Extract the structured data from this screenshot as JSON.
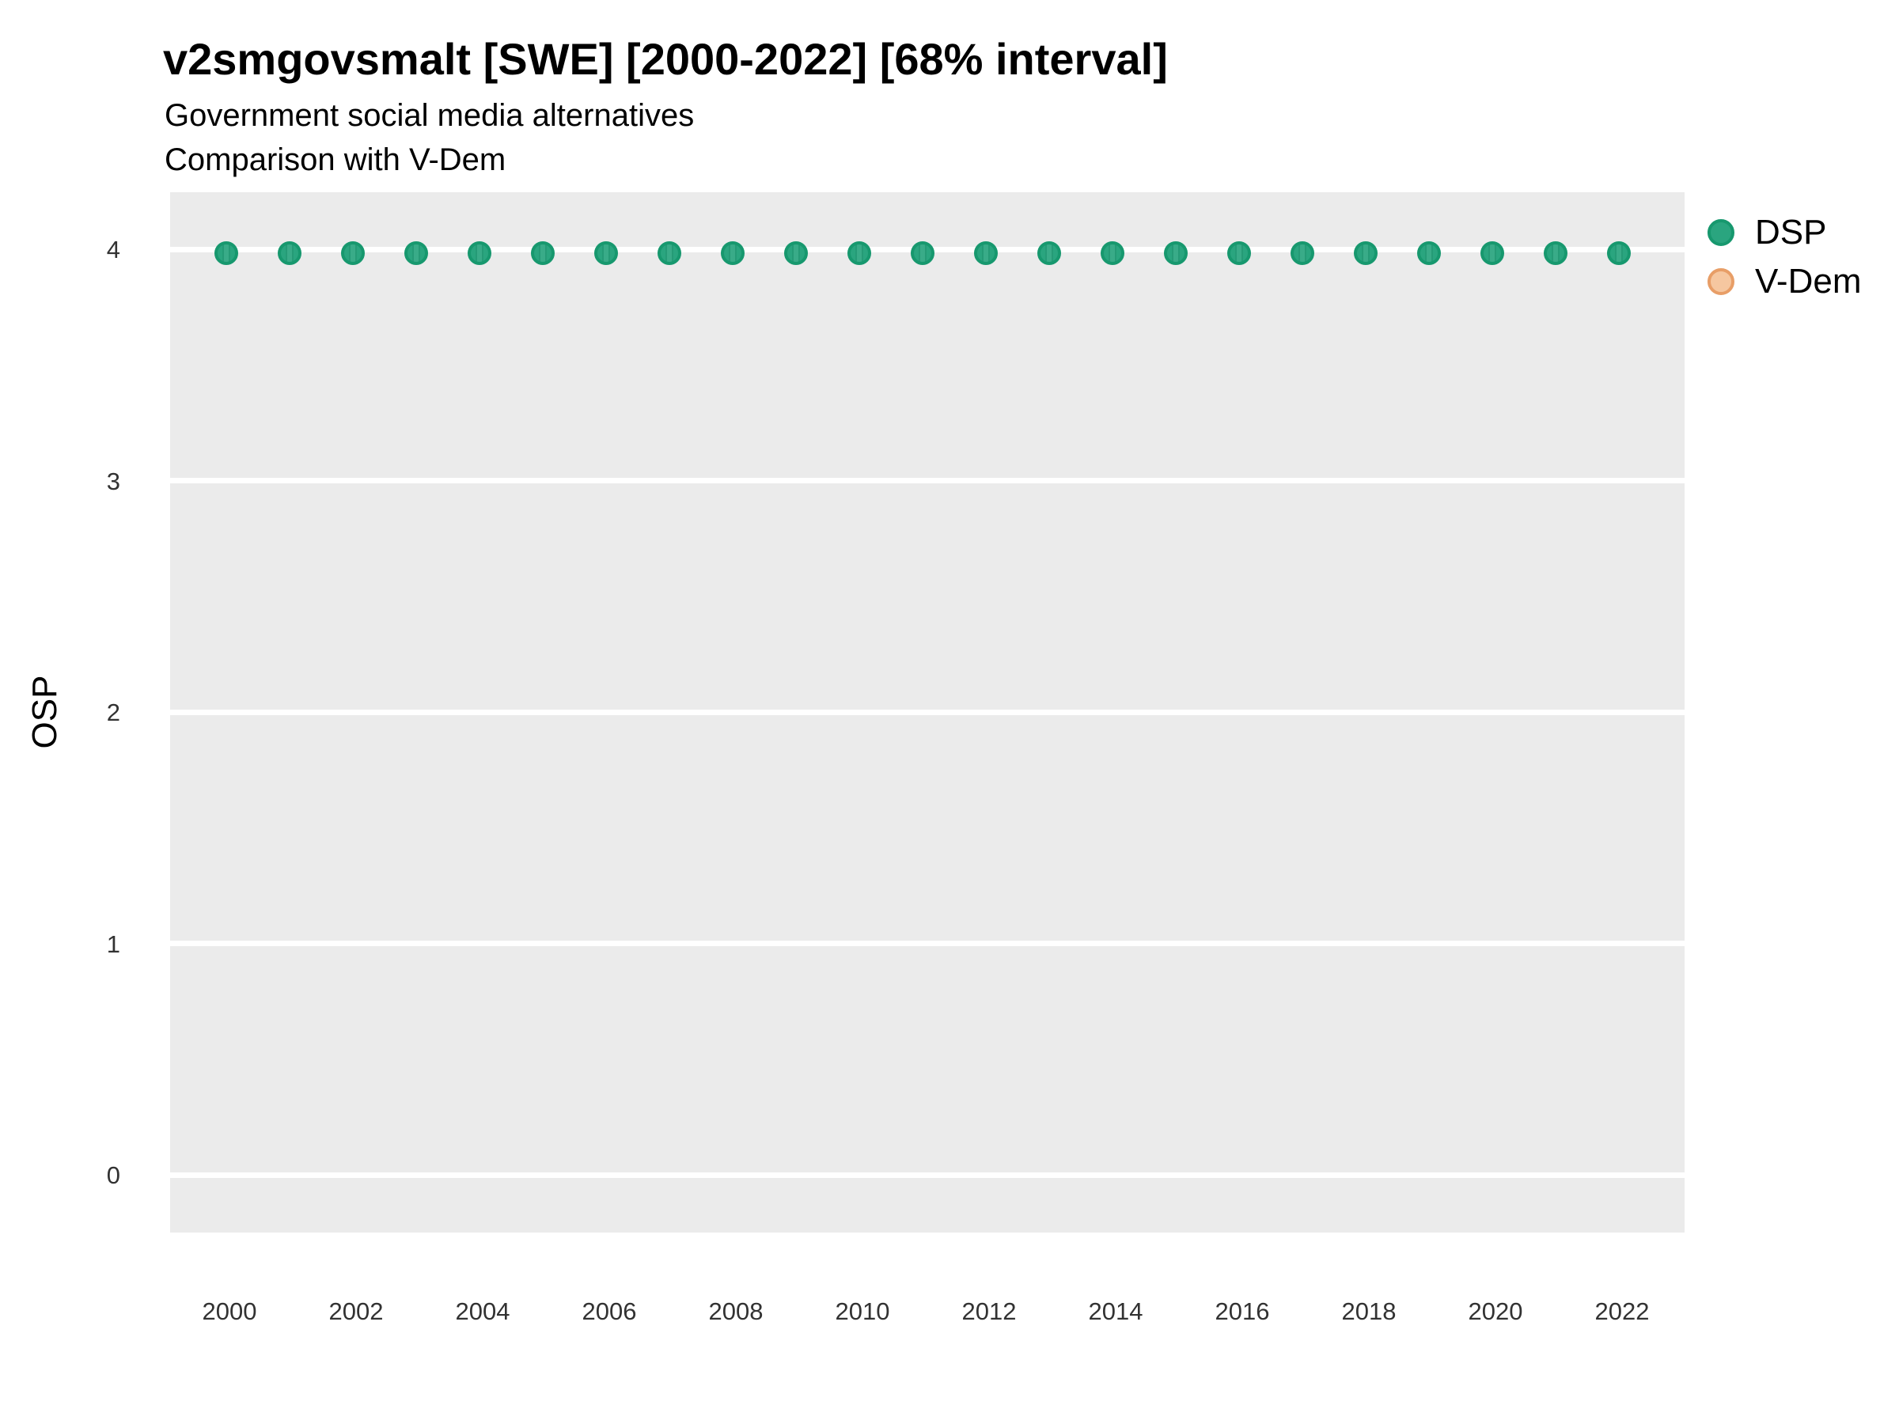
{
  "page": {
    "background": "#ffffff"
  },
  "chart_data": {
    "type": "scatter",
    "title": "v2smgovsmalt [SWE] [2000-2022] [68% interval]",
    "subtitle_line1": "Government social media alternatives",
    "subtitle_line2": "Comparison with V-Dem",
    "xlabel": "",
    "ylabel": "OSP",
    "xlim": [
      1999.1,
      2023
    ],
    "ylim": [
      -0.25,
      4.25
    ],
    "x_ticks": [
      2000,
      2002,
      2004,
      2006,
      2008,
      2010,
      2012,
      2014,
      2016,
      2018,
      2020,
      2022
    ],
    "y_ticks": [
      0,
      1,
      2,
      3,
      4
    ],
    "grid": "horizontal major gridlines only, white on gray panel",
    "panel_color": "#ebebeb",
    "gridline_color": "#ffffff",
    "legend_position": "right",
    "legend": [
      {
        "label": "DSP",
        "fill": "#2aa57f",
        "stroke": "#17986e"
      },
      {
        "label": "V-Dem",
        "fill": "#f6c7a0",
        "stroke": "#e89e67"
      }
    ],
    "series": [
      {
        "name": "DSP",
        "x": [
          2000,
          2001,
          2002,
          2003,
          2004,
          2005,
          2006,
          2007,
          2008,
          2009,
          2010,
          2011,
          2012,
          2013,
          2014,
          2015,
          2016,
          2017,
          2018,
          2019,
          2020,
          2021,
          2022
        ],
        "y": [
          3.97,
          3.97,
          3.97,
          3.97,
          3.97,
          3.97,
          3.97,
          3.97,
          3.97,
          3.97,
          3.97,
          3.97,
          3.97,
          3.97,
          3.97,
          3.97,
          3.97,
          3.97,
          3.97,
          3.97,
          3.97,
          3.97,
          3.97
        ]
      },
      {
        "name": "V-Dem",
        "x": [],
        "y": []
      }
    ]
  }
}
